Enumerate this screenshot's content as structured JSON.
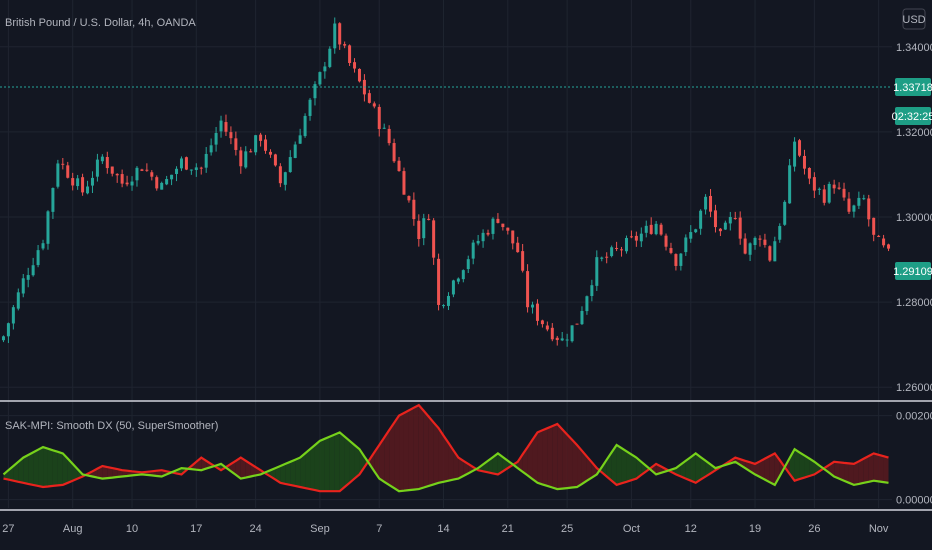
{
  "chart_title": "British Pound / U.S. Dollar, 4h, OANDA",
  "currency_label": "USD",
  "indicator_title": "SAK-MPI: Smooth DX (50, SuperSmoother)",
  "colors": {
    "background": "#131722",
    "grid": "#1f2430",
    "up": "#26a69a",
    "down": "#ef5350",
    "dx_green": "#76d11b",
    "dx_red": "#e8231d",
    "tag_green": "#1e9e86",
    "ref_line": "#26a69a",
    "separator": "#d1d4dc"
  },
  "price_tags": {
    "reference": "1.33718",
    "countdown": "02:32:25",
    "last": "1.29109"
  },
  "chart_data": [
    {
      "type": "candlestick",
      "title": "British Pound / U.S. Dollar, 4h, OANDA",
      "y_axis": {
        "range": [
          1.257,
          1.351
        ],
        "ticks": [
          1.34,
          1.32,
          1.3,
          1.28,
          1.26
        ],
        "tick_labels": [
          "1.34000",
          "1.32000",
          "1.30000",
          "1.28000",
          "1.26000"
        ]
      },
      "x_axis": {
        "tick_labels": [
          "27",
          "Aug",
          "10",
          "17",
          "24",
          "Sep",
          "7",
          "14",
          "21",
          "25",
          "Oct",
          "12",
          "19",
          "26",
          "Nov"
        ]
      },
      "close_path": [
        [
          0,
          1.272
        ],
        [
          4,
          1.285
        ],
        [
          8,
          1.295
        ],
        [
          11,
          1.3135
        ],
        [
          16,
          1.306
        ],
        [
          20,
          1.314
        ],
        [
          24,
          1.308
        ],
        [
          28,
          1.312
        ],
        [
          32,
          1.307
        ],
        [
          36,
          1.313
        ],
        [
          40,
          1.3115
        ],
        [
          44,
          1.3225
        ],
        [
          48,
          1.3135
        ],
        [
          52,
          1.319
        ],
        [
          56,
          1.308
        ],
        [
          60,
          1.3205
        ],
        [
          64,
          1.333
        ],
        [
          67,
          1.344
        ],
        [
          70,
          1.336
        ],
        [
          74,
          1.327
        ],
        [
          78,
          1.3175
        ],
        [
          82,
          1.3035
        ],
        [
          84,
          1.296
        ],
        [
          86,
          1.301
        ],
        [
          88,
          1.279
        ],
        [
          92,
          1.287
        ],
        [
          96,
          1.2945
        ],
        [
          100,
          1.3
        ],
        [
          104,
          1.292
        ],
        [
          106,
          1.2795
        ],
        [
          110,
          1.274
        ],
        [
          113,
          1.271
        ],
        [
          116,
          1.2755
        ],
        [
          120,
          1.289
        ],
        [
          124,
          1.292
        ],
        [
          128,
          1.295
        ],
        [
          132,
          1.2985
        ],
        [
          136,
          1.29
        ],
        [
          140,
          1.298
        ],
        [
          142,
          1.304
        ],
        [
          145,
          1.295
        ],
        [
          148,
          1.301
        ],
        [
          150,
          1.2915
        ],
        [
          153,
          1.296
        ],
        [
          155,
          1.2905
        ],
        [
          158,
          1.303
        ],
        [
          160,
          1.318
        ],
        [
          163,
          1.308
        ],
        [
          166,
          1.305
        ],
        [
          168,
          1.308
        ],
        [
          171,
          1.301
        ],
        [
          174,
          1.304
        ],
        [
          176,
          1.295
        ],
        [
          179,
          1.291
        ]
      ],
      "candle_count": 180
    },
    {
      "type": "line",
      "title": "SAK-MPI: Smooth DX (50, SuperSmoother)",
      "y_axis": {
        "range": [
          -0.0002,
          0.0023
        ],
        "ticks": [
          0.002,
          0.0
        ],
        "tick_labels": [
          "0.00200",
          "0.00000"
        ]
      },
      "series": [
        {
          "color": "#76d11b",
          "points": [
            [
              0,
              0.0006
            ],
            [
              4,
              0.001
            ],
            [
              8,
              0.00125
            ],
            [
              12,
              0.0011
            ],
            [
              16,
              0.0006
            ],
            [
              20,
              0.0005
            ],
            [
              24,
              0.00055
            ],
            [
              28,
              0.0006
            ],
            [
              32,
              0.00055
            ],
            [
              36,
              0.00075
            ],
            [
              40,
              0.0007
            ],
            [
              44,
              0.00085
            ],
            [
              48,
              0.0005
            ],
            [
              52,
              0.0006
            ],
            [
              56,
              0.0008
            ],
            [
              60,
              0.001
            ],
            [
              64,
              0.0014
            ],
            [
              68,
              0.0016
            ],
            [
              72,
              0.0012
            ],
            [
              76,
              0.0005
            ],
            [
              80,
              0.0002
            ],
            [
              84,
              0.00025
            ],
            [
              88,
              0.0004
            ],
            [
              92,
              0.0005
            ],
            [
              96,
              0.00075
            ],
            [
              100,
              0.0011
            ],
            [
              104,
              0.00075
            ],
            [
              108,
              0.0004
            ],
            [
              112,
              0.00025
            ],
            [
              116,
              0.0003
            ],
            [
              120,
              0.0006
            ],
            [
              124,
              0.0013
            ],
            [
              128,
              0.001
            ],
            [
              132,
              0.0006
            ],
            [
              136,
              0.00075
            ],
            [
              140,
              0.0011
            ],
            [
              144,
              0.00075
            ],
            [
              148,
              0.0009
            ],
            [
              152,
              0.0006
            ],
            [
              156,
              0.00035
            ],
            [
              160,
              0.0012
            ],
            [
              164,
              0.0009
            ],
            [
              168,
              0.00055
            ],
            [
              172,
              0.00035
            ],
            [
              176,
              0.00045
            ],
            [
              179,
              0.0004
            ]
          ]
        },
        {
          "color": "#e8231d",
          "points": [
            [
              0,
              0.0005
            ],
            [
              4,
              0.0004
            ],
            [
              8,
              0.0003
            ],
            [
              12,
              0.00035
            ],
            [
              16,
              0.00055
            ],
            [
              20,
              0.0008
            ],
            [
              24,
              0.0007
            ],
            [
              28,
              0.00065
            ],
            [
              32,
              0.0007
            ],
            [
              36,
              0.0006
            ],
            [
              40,
              0.001
            ],
            [
              44,
              0.0007
            ],
            [
              48,
              0.001
            ],
            [
              52,
              0.0007
            ],
            [
              56,
              0.0004
            ],
            [
              60,
              0.0003
            ],
            [
              64,
              0.0002
            ],
            [
              68,
              0.0002
            ],
            [
              72,
              0.0006
            ],
            [
              76,
              0.0013
            ],
            [
              80,
              0.002
            ],
            [
              84,
              0.00225
            ],
            [
              88,
              0.0017
            ],
            [
              92,
              0.001
            ],
            [
              96,
              0.0007
            ],
            [
              100,
              0.0006
            ],
            [
              104,
              0.0009
            ],
            [
              108,
              0.0016
            ],
            [
              112,
              0.0018
            ],
            [
              116,
              0.0013
            ],
            [
              120,
              0.00075
            ],
            [
              124,
              0.00035
            ],
            [
              128,
              0.0005
            ],
            [
              132,
              0.00085
            ],
            [
              136,
              0.0006
            ],
            [
              140,
              0.0004
            ],
            [
              144,
              0.0007
            ],
            [
              148,
              0.001
            ],
            [
              152,
              0.00085
            ],
            [
              156,
              0.0011
            ],
            [
              160,
              0.00045
            ],
            [
              164,
              0.0006
            ],
            [
              168,
              0.0009
            ],
            [
              172,
              0.00085
            ],
            [
              176,
              0.0011
            ],
            [
              179,
              0.001
            ]
          ]
        }
      ]
    }
  ]
}
